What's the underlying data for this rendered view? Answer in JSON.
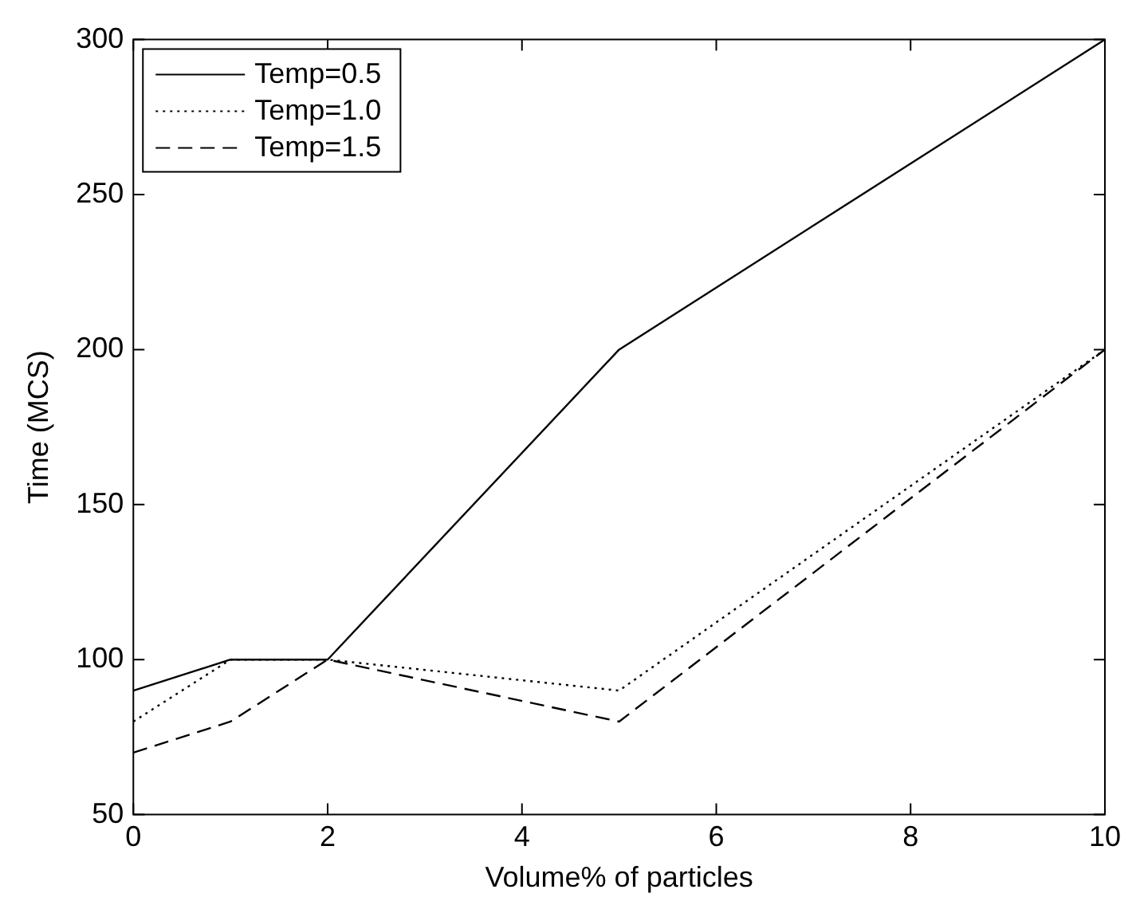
{
  "chart_data": {
    "type": "line",
    "xlabel": "Volume% of particles",
    "ylabel": "Time (MCS)",
    "x": [
      0,
      1,
      2,
      5,
      10
    ],
    "series": [
      {
        "name": "Temp=0.5",
        "color": "#000000",
        "line_style": "solid",
        "values": [
          90,
          100,
          100,
          200,
          300
        ]
      },
      {
        "name": "Temp=1.0",
        "color": "#000000",
        "line_style": "dotted",
        "values": [
          80,
          100,
          100,
          90,
          200
        ]
      },
      {
        "name": "Temp=1.5",
        "color": "#000000",
        "line_style": "dashed",
        "values": [
          70,
          80,
          100,
          80,
          200
        ]
      }
    ],
    "xlim": [
      0,
      10
    ],
    "xticks": [
      0,
      2,
      4,
      6,
      8,
      10
    ],
    "ylim": [
      50,
      300
    ],
    "yticks": [
      50,
      100,
      150,
      200,
      250,
      300
    ],
    "grid": false,
    "legend": "top left",
    "marker": "none"
  }
}
